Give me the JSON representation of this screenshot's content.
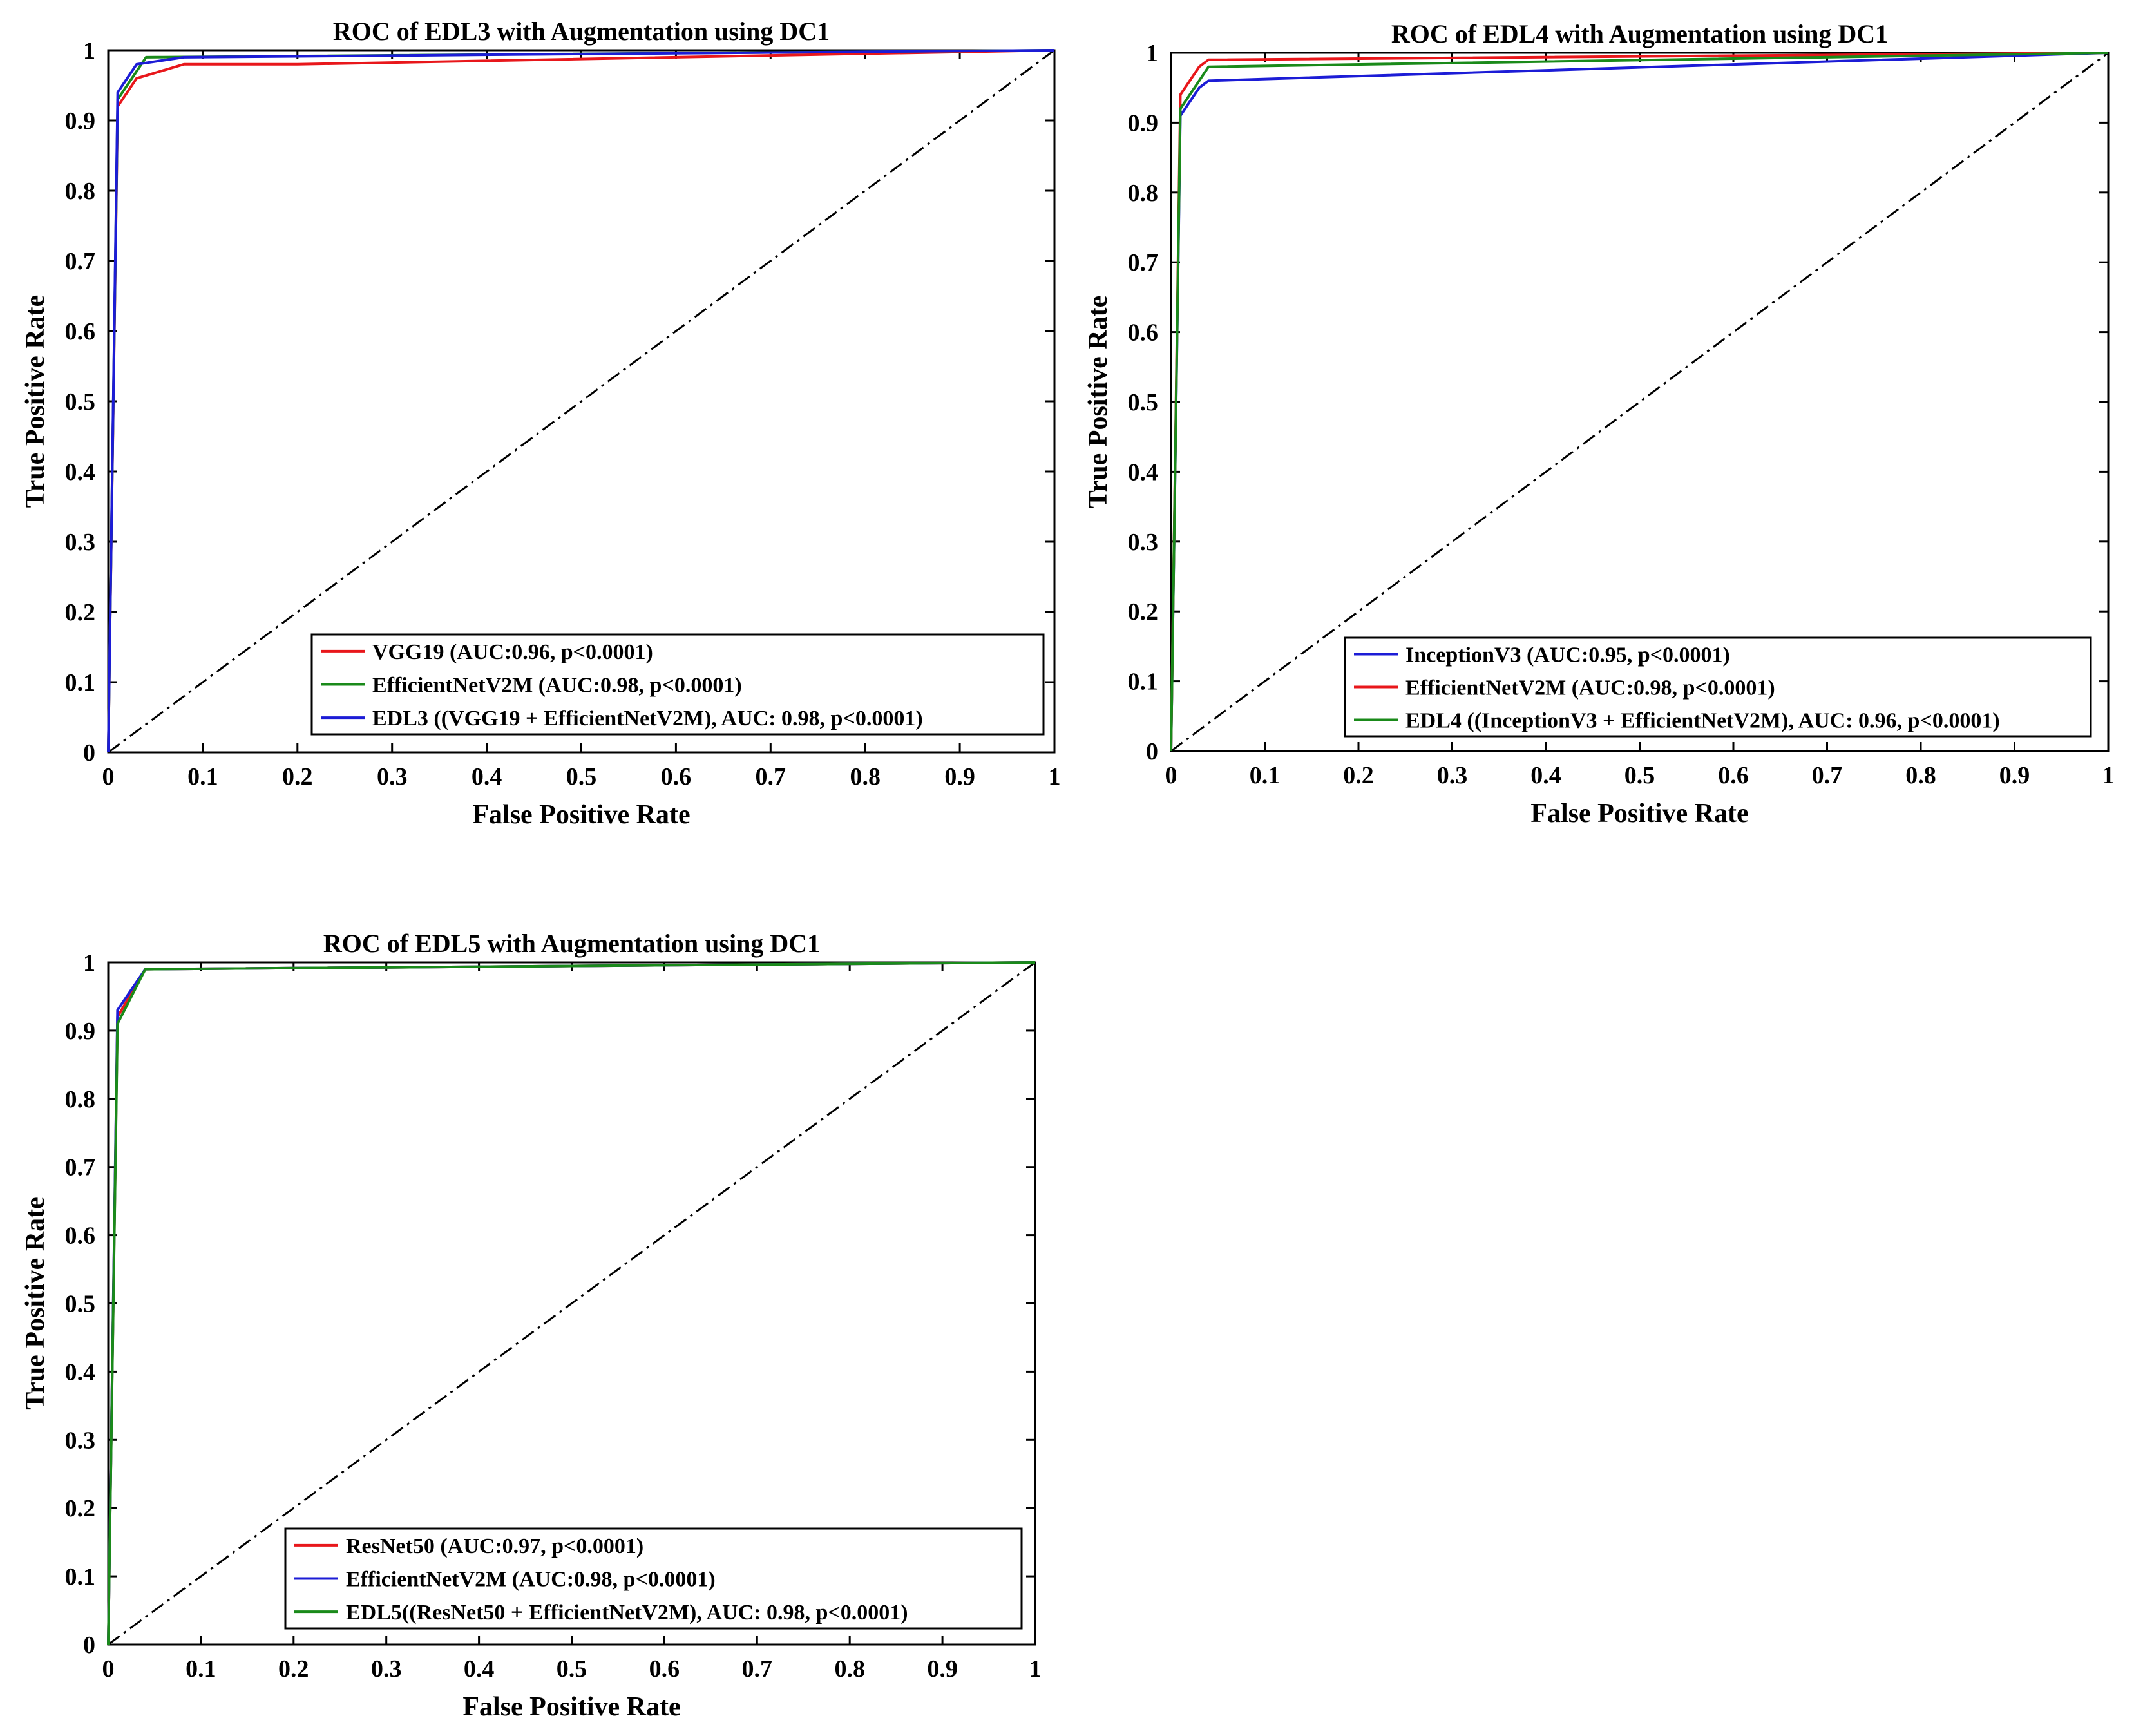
{
  "chart_data": [
    {
      "type": "line",
      "title": "ROC of EDL3 with Augmentation using DC1",
      "xlabel": "False Positive Rate",
      "ylabel": "True Positive Rate",
      "xlim": [
        0,
        1
      ],
      "ylim": [
        0,
        1
      ],
      "xticks": [
        "0",
        "0.1",
        "0.2",
        "0.3",
        "0.4",
        "0.5",
        "0.6",
        "0.7",
        "0.8",
        "0.9",
        "1"
      ],
      "yticks": [
        "0",
        "0.1",
        "0.2",
        "0.3",
        "0.4",
        "0.5",
        "0.6",
        "0.7",
        "0.8",
        "0.9",
        "1"
      ],
      "grid": false,
      "legend_position": "bottom-right",
      "series": [
        {
          "name": "VGG19 (AUC:0.96, p<0.0001)",
          "color": "#e8171b",
          "x": [
            0,
            0.01,
            0.03,
            0.08,
            0.2,
            1
          ],
          "y": [
            0,
            0.92,
            0.96,
            0.98,
            0.98,
            1
          ]
        },
        {
          "name": "EfficientNetV2M (AUC:0.98, p<0.0001)",
          "color": "#1a8a1a",
          "x": [
            0,
            0.01,
            0.04,
            1
          ],
          "y": [
            0,
            0.93,
            0.99,
            1
          ]
        },
        {
          "name": "EDL3 ((VGG19 + EfficientNetV2M), AUC: 0.98, p<0.0001)",
          "color": "#1c1cd6",
          "x": [
            0,
            0.01,
            0.03,
            0.08,
            1
          ],
          "y": [
            0,
            0.94,
            0.98,
            0.99,
            1
          ]
        }
      ],
      "diagonal": {
        "x": [
          0,
          1
        ],
        "y": [
          0,
          1
        ],
        "style": "dash-dot",
        "color": "#000000"
      }
    },
    {
      "type": "line",
      "title": "ROC of EDL4 with Augmentation using DC1",
      "xlabel": "False Positive Rate",
      "ylabel": "True Positive Rate",
      "xlim": [
        0,
        1
      ],
      "ylim": [
        0,
        1
      ],
      "xticks": [
        "0",
        "0.1",
        "0.2",
        "0.3",
        "0.4",
        "0.5",
        "0.6",
        "0.7",
        "0.8",
        "0.9",
        "1"
      ],
      "yticks": [
        "0",
        "0.1",
        "0.2",
        "0.3",
        "0.4",
        "0.5",
        "0.6",
        "0.7",
        "0.8",
        "0.9",
        "1"
      ],
      "grid": false,
      "legend_position": "bottom-right",
      "series": [
        {
          "name": "InceptionV3 (AUC:0.95, p<0.0001)",
          "color": "#1c1cd6",
          "x": [
            0,
            0.01,
            0.03,
            0.04,
            1
          ],
          "y": [
            0,
            0.91,
            0.95,
            0.96,
            1
          ]
        },
        {
          "name": "EfficientNetV2M (AUC:0.98, p<0.0001)",
          "color": "#e8171b",
          "x": [
            0,
            0.01,
            0.03,
            0.04,
            1
          ],
          "y": [
            0,
            0.94,
            0.98,
            0.99,
            1
          ]
        },
        {
          "name": "EDL4 ((InceptionV3 + EfficientNetV2M), AUC: 0.96, p<0.0001)",
          "color": "#1a8a1a",
          "x": [
            0,
            0.01,
            0.03,
            0.04,
            1
          ],
          "y": [
            0,
            0.92,
            0.96,
            0.98,
            1
          ]
        }
      ],
      "diagonal": {
        "x": [
          0,
          1
        ],
        "y": [
          0,
          1
        ],
        "style": "dash-dot",
        "color": "#000000"
      }
    },
    {
      "type": "line",
      "title": "ROC of EDL5 with Augmentation using DC1",
      "xlabel": "False Positive Rate",
      "ylabel": "True Positive Rate",
      "xlim": [
        0,
        1
      ],
      "ylim": [
        0,
        1
      ],
      "xticks": [
        "0",
        "0.1",
        "0.2",
        "0.3",
        "0.4",
        "0.5",
        "0.6",
        "0.7",
        "0.8",
        "0.9",
        "1"
      ],
      "yticks": [
        "0",
        "0.1",
        "0.2",
        "0.3",
        "0.4",
        "0.5",
        "0.6",
        "0.7",
        "0.8",
        "0.9",
        "1"
      ],
      "grid": false,
      "legend_position": "bottom-right",
      "series": [
        {
          "name": "ResNet50 (AUC:0.97, p<0.0001)",
          "color": "#e8171b",
          "x": [
            0,
            0.01,
            0.04,
            1
          ],
          "y": [
            0,
            0.92,
            0.99,
            1
          ]
        },
        {
          "name": "EfficientNetV2M (AUC:0.98, p<0.0001)",
          "color": "#1c1cd6",
          "x": [
            0,
            0.01,
            0.04,
            1
          ],
          "y": [
            0,
            0.93,
            0.99,
            1
          ]
        },
        {
          "name": "EDL5((ResNet50 + EfficientNetV2M), AUC: 0.98, p<0.0001)",
          "color": "#1a8a1a",
          "x": [
            0,
            0.01,
            0.04,
            1
          ],
          "y": [
            0,
            0.91,
            0.99,
            1
          ]
        }
      ],
      "diagonal": {
        "x": [
          0,
          1
        ],
        "y": [
          0,
          1
        ],
        "style": "dash-dot",
        "color": "#000000"
      }
    }
  ]
}
